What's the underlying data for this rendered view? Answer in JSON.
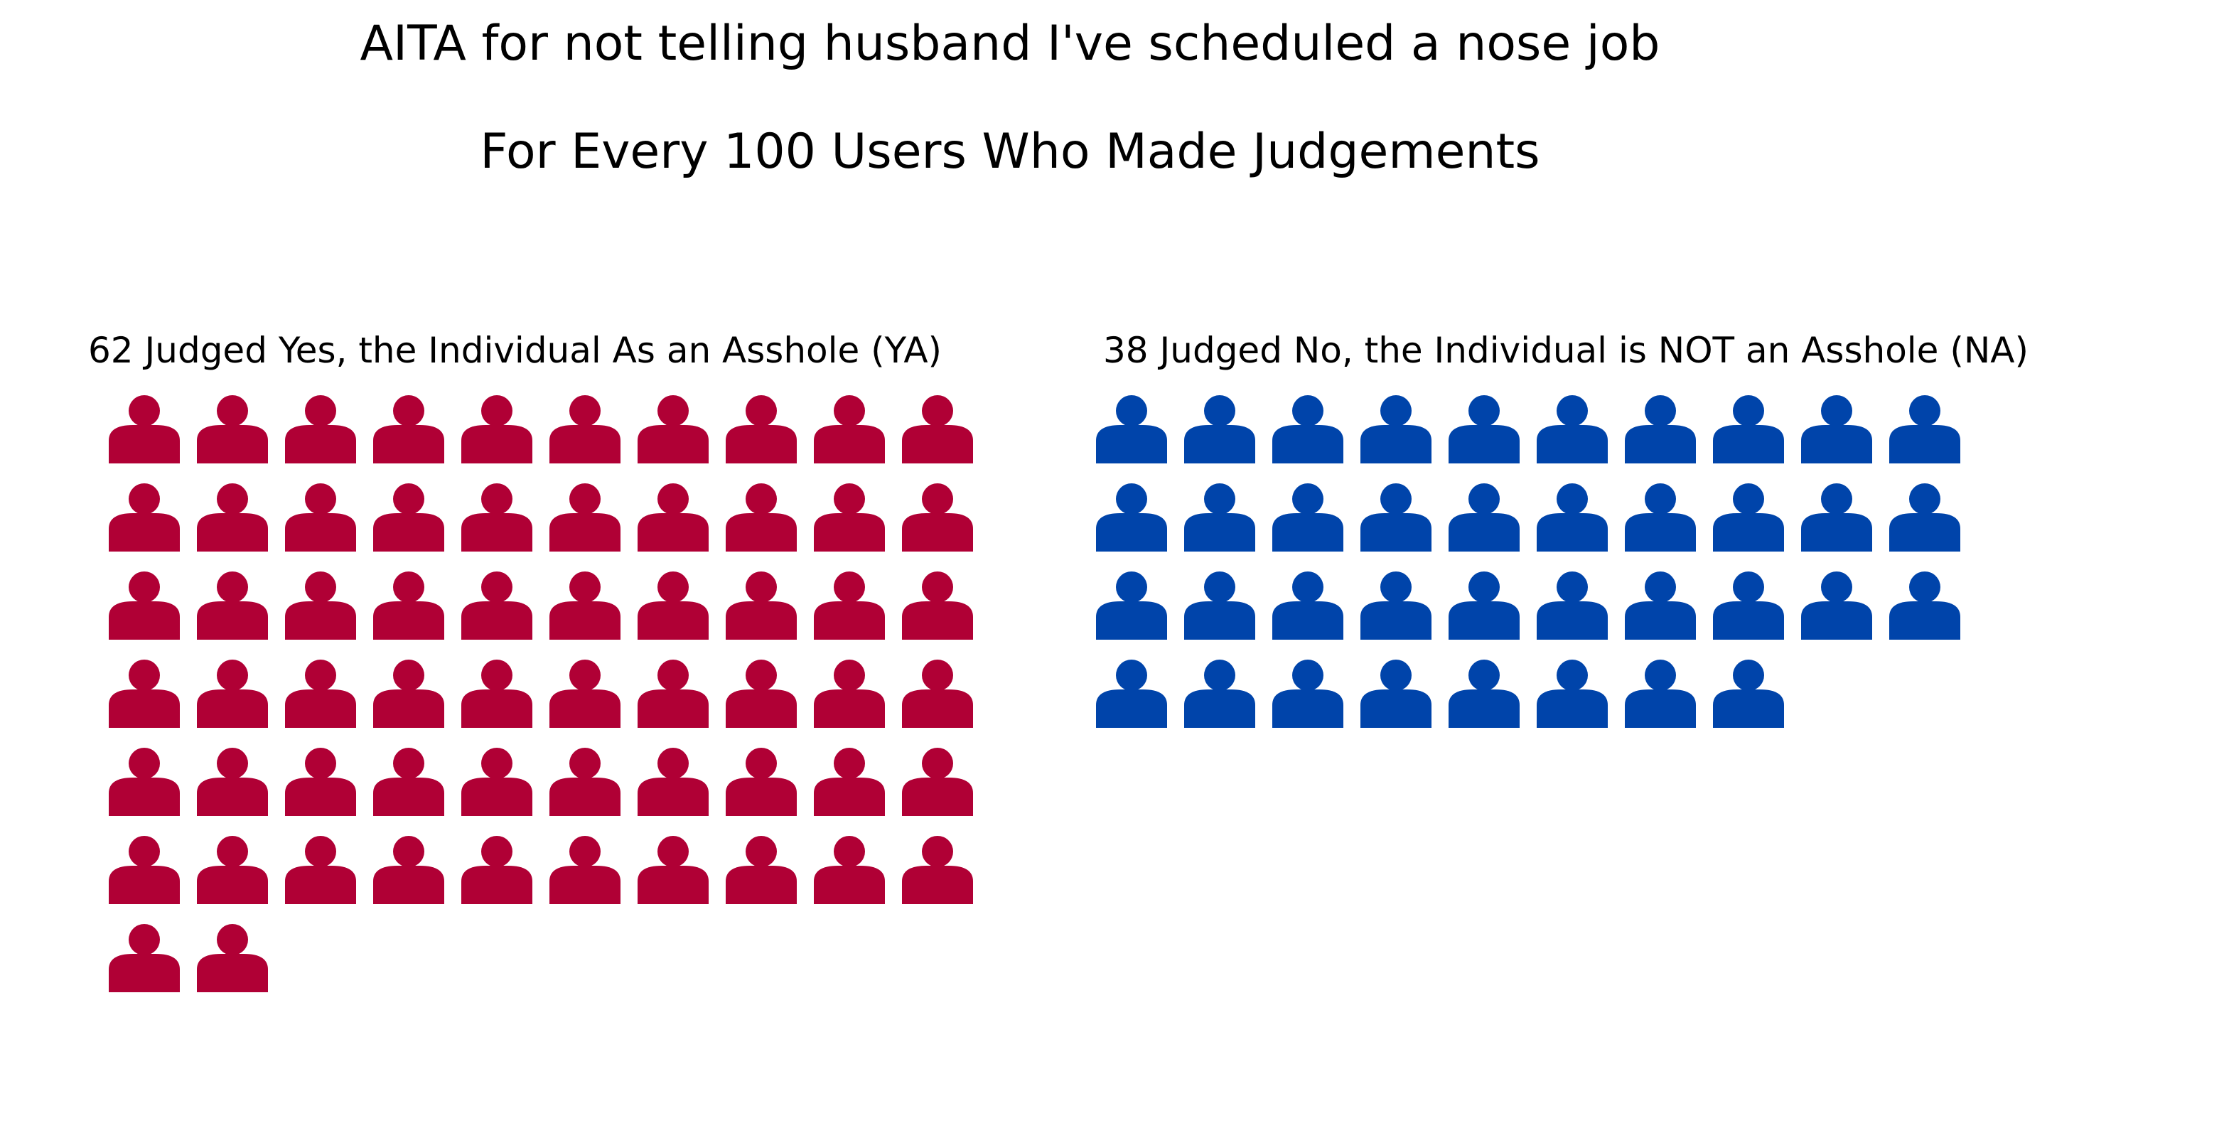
{
  "chart_data": {
    "type": "waffle",
    "title": "AITA for not telling husband I've scheduled a nose job",
    "subtitle": "For Every 100 Users Who Made Judgements",
    "total": 100,
    "grid_columns": 10,
    "series": [
      {
        "name": "62 Judged Yes, the Individual As an Asshole (YA)",
        "value": 62,
        "color": "#b00035",
        "icon": "person-icon"
      },
      {
        "name": "38 Judged No, the Individual is NOT an Asshole (NA)",
        "value": 38,
        "color": "#0044aa",
        "icon": "person-icon"
      }
    ]
  }
}
